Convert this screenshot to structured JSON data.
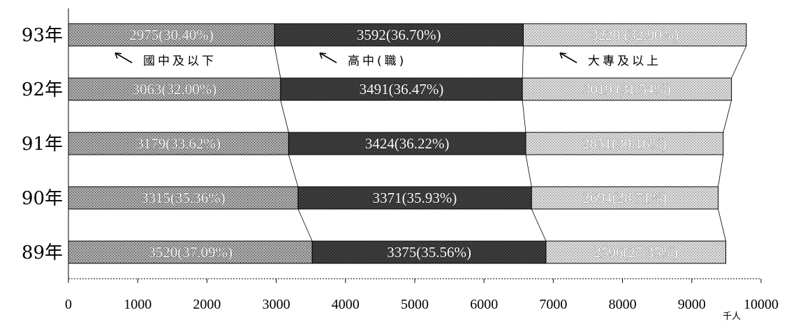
{
  "chart_data": {
    "type": "bar",
    "orientation": "horizontal",
    "stacked": true,
    "categories": [
      "93年",
      "92年",
      "91年",
      "90年",
      "89年"
    ],
    "series": [
      {
        "name": "國中及以下",
        "values": [
          2975,
          3063,
          3179,
          3315,
          3520
        ],
        "labels": [
          "2975(30.40%)",
          "3063(32.00%)",
          "3179(33.62%)",
          "3315(35.36%)",
          "3520(37.09%)"
        ],
        "color": "#a8a8a8"
      },
      {
        "name": "高中(職)",
        "values": [
          3592,
          3491,
          3424,
          3371,
          3375
        ],
        "labels": [
          "3592(36.70%)",
          "3491(36.47%)",
          "3424(36.22%)",
          "3371(35.93%)",
          "3375(35.56%)"
        ],
        "color": "#4a4a4a"
      },
      {
        "name": "大專及以上",
        "values": [
          3220,
          3019,
          2851,
          2694,
          2596
        ],
        "labels": [
          "3220 (32.90%)",
          "3019 (31.54%)",
          "2851(30.16%)",
          "2694(28.71%)",
          "2596(27.35%)"
        ],
        "color": "#d2d2d2"
      }
    ],
    "xlim": [
      0,
      10000
    ],
    "xticks": [
      "0",
      "1000",
      "2000",
      "3000",
      "4000",
      "5000",
      "6000",
      "7000",
      "8000",
      "9000",
      "10000"
    ],
    "xunit": "千人",
    "legend_placement": "between top two bars",
    "grid": false
  }
}
